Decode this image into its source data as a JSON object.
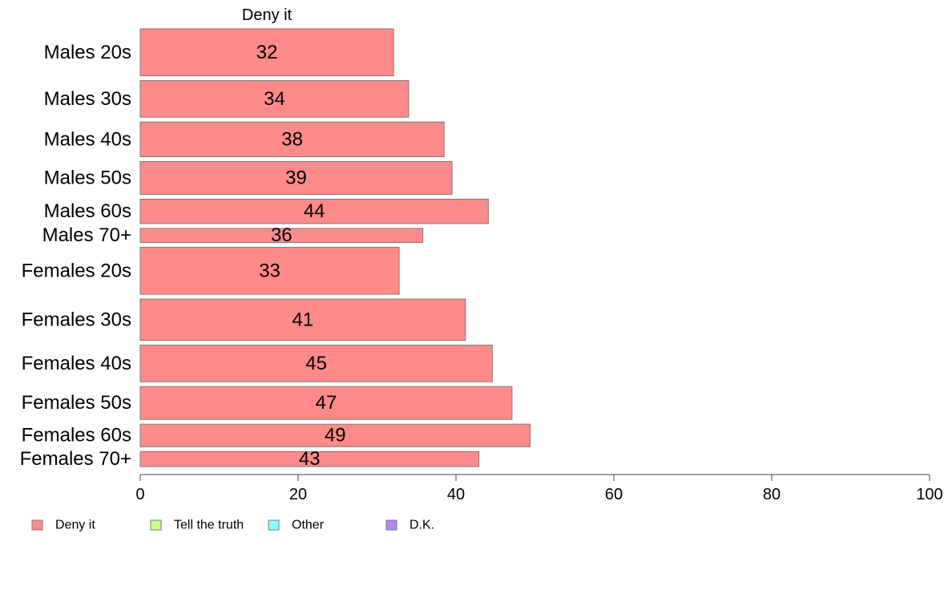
{
  "chart_data": {
    "type": "bar",
    "orientation": "horizontal",
    "stacked": true,
    "series_header": "Deny it",
    "categories": [
      "Males 20s",
      "Males 30s",
      "Males 40s",
      "Males 50s",
      "Males 60s",
      "Males 70+",
      "Females 20s",
      "Females 30s",
      "Females 40s",
      "Females 50s",
      "Females 60s",
      "Females 70+"
    ],
    "category_weights": [
      1.0,
      0.78,
      0.74,
      0.7,
      0.52,
      0.3,
      1.0,
      0.88,
      0.78,
      0.7,
      0.48,
      0.32
    ],
    "series": [
      {
        "name": "Deny it",
        "color": "#ff8a8a",
        "values": [
          32.1,
          34.0,
          38.5,
          39.5,
          44.1,
          35.8,
          32.8,
          41.2,
          44.6,
          47.1,
          49.4,
          42.9
        ],
        "labels": [
          "32",
          "34",
          "38",
          "39",
          "44",
          "36",
          "33",
          "41",
          "45",
          "47",
          "49",
          "43"
        ]
      }
    ],
    "xlim": [
      0,
      100
    ],
    "xticks": [
      "0",
      "20",
      "40",
      "60",
      "80",
      "100"
    ],
    "legend": {
      "position": "bottom",
      "items": [
        {
          "label": "Deny it",
          "color": "#ff8a8a"
        },
        {
          "label": "Tell the truth",
          "color": "#ccff88"
        },
        {
          "label": "Other",
          "color": "#88ffff"
        },
        {
          "label": "D.K.",
          "color": "#b388ff"
        }
      ]
    }
  }
}
